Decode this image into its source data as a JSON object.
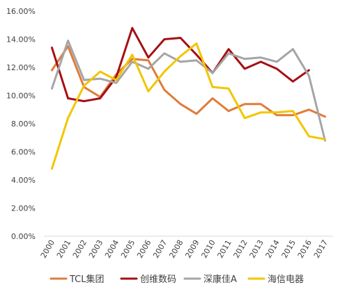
{
  "chart_data": {
    "type": "line",
    "x": [
      "2000",
      "2001",
      "2002",
      "2003",
      "2004",
      "2005",
      "2006",
      "2007",
      "2008",
      "2009",
      "2010",
      "2011",
      "2012",
      "2013",
      "2014",
      "2015",
      "2016",
      "2017"
    ],
    "ylim": [
      0,
      16
    ],
    "yticks": [
      "0.00%",
      "2.00%",
      "4.00%",
      "6.00%",
      "8.00%",
      "10.00%",
      "12.00%",
      "14.00%",
      "16.00%"
    ],
    "grid": false,
    "legend_position": "bottom",
    "series": [
      {
        "name": "TCL集团",
        "color": "#E07B39",
        "values": [
          11.8,
          13.5,
          10.6,
          9.9,
          11.5,
          12.6,
          12.5,
          10.4,
          9.4,
          8.7,
          9.8,
          8.9,
          9.4,
          9.4,
          8.6,
          8.6,
          9.0,
          8.5
        ]
      },
      {
        "name": "创维数码",
        "color": "#A50F15",
        "values": [
          13.4,
          9.8,
          9.6,
          9.8,
          11.3,
          14.8,
          12.7,
          14.0,
          14.1,
          12.9,
          11.6,
          13.3,
          11.9,
          12.4,
          11.9,
          11.0,
          11.8,
          null
        ]
      },
      {
        "name": "深康佳A",
        "color": "#A5A5A5",
        "values": [
          10.5,
          13.9,
          11.1,
          11.2,
          10.9,
          12.4,
          11.9,
          13.0,
          12.4,
          12.5,
          11.6,
          13.0,
          12.6,
          12.7,
          12.4,
          13.3,
          11.4,
          6.8
        ]
      },
      {
        "name": "海信电器",
        "color": "#F2C500",
        "values": [
          4.8,
          8.4,
          10.7,
          11.7,
          11.1,
          12.9,
          10.3,
          11.7,
          12.8,
          13.7,
          10.6,
          10.5,
          8.4,
          8.8,
          8.8,
          8.9,
          7.1,
          6.9
        ]
      }
    ]
  }
}
